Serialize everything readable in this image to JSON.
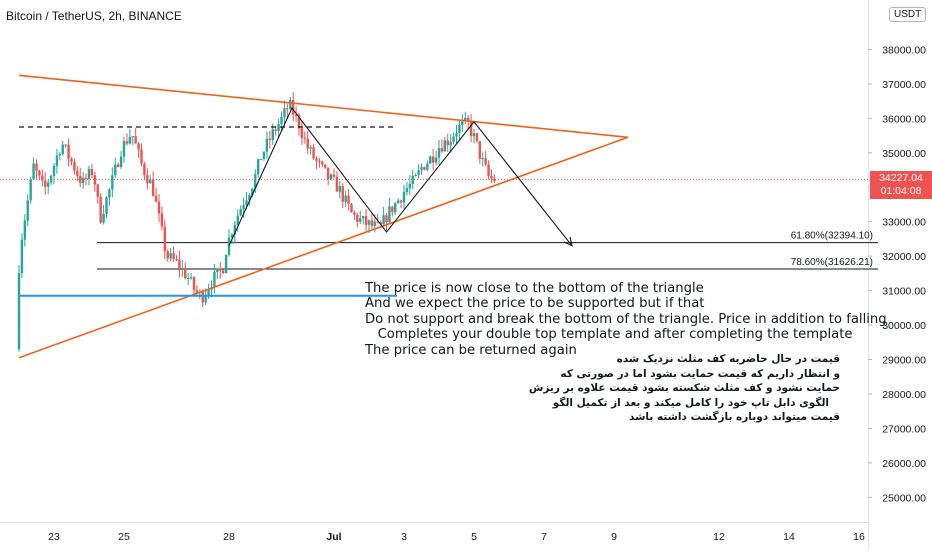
{
  "header": {
    "symbol_title": "Bitcoin / TetherUS, 2h, BINANCE",
    "currency": "USDT"
  },
  "last_price": {
    "value": "34227.04",
    "countdown": "01:04:08"
  },
  "colors": {
    "up": "#26a69a",
    "down": "#ef5350",
    "triangle": "#f0621c",
    "support_line": "#2196f3",
    "text": "#131722"
  },
  "chart_data": {
    "type": "candlestick",
    "symbol": "BTC/USDT",
    "interval": "2h",
    "exchange": "BINANCE",
    "x_ticks": [
      "23",
      "25",
      "28",
      "Jul",
      "3",
      "5",
      "7",
      "9",
      "12",
      "14",
      "16"
    ],
    "x_tick_days": [
      23,
      25,
      28,
      31,
      33,
      35,
      37,
      39,
      42,
      44,
      46
    ],
    "y_ticks": [
      25000,
      26000,
      27000,
      28000,
      29000,
      30000,
      31000,
      32000,
      33000,
      34000,
      35000,
      36000,
      37000,
      38000
    ],
    "y_tick_labels": [
      "25000.00",
      "26000.00",
      "27000.00",
      "28000.00",
      "29000.00",
      "30000.00",
      "31000.00",
      "32000.00",
      "33000.00",
      "34000.00",
      "35000.00",
      "36000.00",
      "37000.00",
      "38000.00"
    ],
    "ylim": [
      24500,
      39000
    ],
    "grid": false,
    "price_path": [
      [
        22.0,
        29300
      ],
      [
        22.1,
        32200
      ],
      [
        22.3,
        33400
      ],
      [
        22.5,
        34600
      ],
      [
        22.8,
        33900
      ],
      [
        23.0,
        34400
      ],
      [
        23.3,
        35300
      ],
      [
        23.6,
        34700
      ],
      [
        23.9,
        34100
      ],
      [
        24.2,
        34500
      ],
      [
        24.4,
        33100
      ],
      [
        24.7,
        34000
      ],
      [
        25.0,
        35100
      ],
      [
        25.3,
        35600
      ],
      [
        25.6,
        34600
      ],
      [
        25.9,
        34000
      ],
      [
        26.1,
        33000
      ],
      [
        26.3,
        32000
      ],
      [
        26.6,
        31800
      ],
      [
        26.9,
        31400
      ],
      [
        27.1,
        31000
      ],
      [
        27.3,
        30800
      ],
      [
        27.6,
        31300
      ],
      [
        27.9,
        31600
      ],
      [
        28.0,
        32200
      ],
      [
        28.2,
        32900
      ],
      [
        28.5,
        33600
      ],
      [
        28.8,
        34200
      ],
      [
        29.0,
        34900
      ],
      [
        29.3,
        35500
      ],
      [
        29.6,
        36000
      ],
      [
        29.8,
        36400
      ],
      [
        30.1,
        35800
      ],
      [
        30.3,
        35200
      ],
      [
        30.6,
        34700
      ],
      [
        30.9,
        34300
      ],
      [
        31.2,
        34000
      ],
      [
        31.4,
        33600
      ],
      [
        31.6,
        33200
      ],
      [
        31.9,
        33000
      ],
      [
        32.1,
        32900
      ],
      [
        32.4,
        32800
      ],
      [
        32.6,
        33200
      ],
      [
        32.9,
        33600
      ],
      [
        33.1,
        33900
      ],
      [
        33.4,
        34200
      ],
      [
        33.6,
        34600
      ],
      [
        33.9,
        34900
      ],
      [
        34.1,
        35200
      ],
      [
        34.4,
        35400
      ],
      [
        34.6,
        35700
      ],
      [
        34.9,
        35850
      ],
      [
        35.1,
        35400
      ],
      [
        35.3,
        34800
      ],
      [
        35.5,
        34300
      ],
      [
        35.6,
        34227
      ]
    ],
    "fib_levels": [
      {
        "label": "61.80%(32394.10)",
        "price": 32394.1
      },
      {
        "label": "78.60%(31626.21)",
        "price": 31626.21
      }
    ],
    "triangle_upper": [
      [
        22.0,
        37250
      ],
      [
        39.4,
        35450
      ]
    ],
    "triangle_lower": [
      [
        22.0,
        29050
      ],
      [
        39.4,
        35450
      ]
    ],
    "resistance_dashed": [
      [
        22.0,
        35750
      ],
      [
        32.8,
        35750
      ]
    ],
    "support_line": [
      [
        22.0,
        30850
      ],
      [
        32.8,
        30850
      ]
    ],
    "double_top_path": [
      [
        28.0,
        32300
      ],
      [
        29.8,
        36300
      ],
      [
        32.5,
        32700
      ],
      [
        35.0,
        35900
      ],
      [
        37.8,
        32300
      ]
    ],
    "last_price": 34227.04
  },
  "annotations": {
    "english": "The price is now close to the bottom of the triangle\nAnd we expect the price to be supported but if that\nDo not support and break the bottom of the triangle. Price in addition to falling\n   Completes your double top template and after completing the template\nThe price can be returned again",
    "persian": "قیمت در حال حاضربه کف مثلث نزدیک شده\nو انتظار داریم که قیمت حمایت بشود اما در صورتی که\nحمایت نشود و کف مثلث شکسته بشود قیمت علاوه بر ریزش\n   الگوی دابل تاپ خود را کامل میکند و بعد از تکمیل الگو\nقیمت میتواند دوباره بازگشت داشته باشد"
  }
}
